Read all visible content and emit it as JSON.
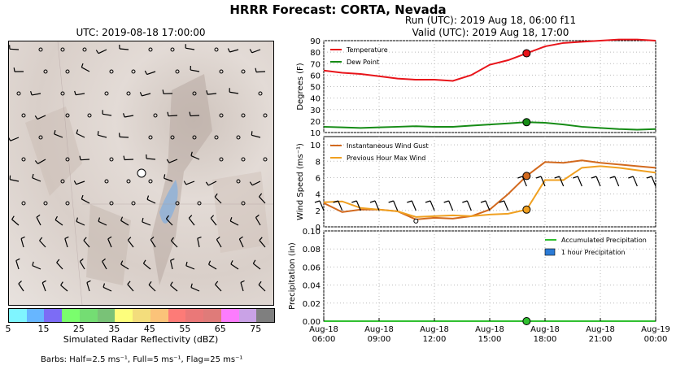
{
  "header": {
    "title": "HRRR Forecast: CORTA, Nevada",
    "map_title": "UTC: 2019-08-18 17:00:00",
    "run_line": "Run (UTC): 2019 Aug 18, 06:00 f11",
    "valid_line": "Valid (UTC): 2019 Aug 18, 17:00"
  },
  "colorbar": {
    "label": "Simulated Radar Reflectivity (dBZ)",
    "ticks": [
      "5",
      "15",
      "25",
      "35",
      "45",
      "55",
      "65",
      "75"
    ],
    "colors": [
      "#7ff5ff",
      "#67b6ff",
      "#7c6cf5",
      "#7afe6d",
      "#74dd73",
      "#79c277",
      "#fdfe7c",
      "#f3dd7c",
      "#fbc379",
      "#fd7b77",
      "#ea7878",
      "#df7b79",
      "#fc7cfd",
      "#c9a2e6",
      "#7f7f7f"
    ]
  },
  "barb_legend": "Barbs: Half=2.5 ms⁻¹, Full=5 ms⁻¹, Flag=25 ms⁻¹",
  "chart_data": [
    {
      "type": "line",
      "ylabel": "Degrees (F)",
      "ylim": [
        10,
        90
      ],
      "yticks": [
        "10",
        "20",
        "30",
        "40",
        "50",
        "60",
        "70",
        "80",
        "90"
      ],
      "x": [
        "2019-08-18 06:00",
        "2019-08-18 07:00",
        "2019-08-18 08:00",
        "2019-08-18 09:00",
        "2019-08-18 10:00",
        "2019-08-18 11:00",
        "2019-08-18 12:00",
        "2019-08-18 13:00",
        "2019-08-18 14:00",
        "2019-08-18 15:00",
        "2019-08-18 16:00",
        "2019-08-18 17:00",
        "2019-08-18 18:00",
        "2019-08-18 19:00",
        "2019-08-18 20:00",
        "2019-08-18 21:00",
        "2019-08-18 22:00",
        "2019-08-18 23:00",
        "2019-08-19 00:00"
      ],
      "legend_placement": "top-left",
      "series": [
        {
          "name": "Temperature",
          "color": "#e8141a",
          "values": [
            64,
            62,
            61,
            59,
            57,
            56,
            56,
            55,
            60,
            69,
            73,
            79,
            85,
            88,
            89,
            90,
            91,
            91,
            90
          ]
        },
        {
          "name": "Dew Point",
          "color": "#168c16",
          "values": [
            15,
            14.5,
            14,
            14.5,
            15,
            15.5,
            15,
            15,
            16,
            17,
            18,
            19,
            18.5,
            17,
            15,
            14,
            13,
            12.5,
            13
          ]
        }
      ],
      "current_marker_x": "2019-08-18 17:00",
      "grid": true
    },
    {
      "type": "line",
      "ylabel": "Wind Speed (ms⁻¹)",
      "ylim": [
        0,
        11
      ],
      "yticks": [
        "0",
        "2",
        "4",
        "6",
        "8",
        "10"
      ],
      "x": [
        "2019-08-18 06:00",
        "2019-08-18 07:00",
        "2019-08-18 08:00",
        "2019-08-18 09:00",
        "2019-08-18 10:00",
        "2019-08-18 11:00",
        "2019-08-18 12:00",
        "2019-08-18 13:00",
        "2019-08-18 14:00",
        "2019-08-18 15:00",
        "2019-08-18 16:00",
        "2019-08-18 17:00",
        "2019-08-18 18:00",
        "2019-08-18 19:00",
        "2019-08-18 20:00",
        "2019-08-18 21:00",
        "2019-08-18 22:00",
        "2019-08-18 23:00",
        "2019-08-19 00:00"
      ],
      "legend_placement": "top-left",
      "series": [
        {
          "name": "Instantaneous Wind Gust",
          "color": "#d2691e",
          "values": [
            2.9,
            1.8,
            2.1,
            2.1,
            1.9,
            0.9,
            1.1,
            1.0,
            1.3,
            2.1,
            4.0,
            6.2,
            7.9,
            7.8,
            8.1,
            7.8,
            7.6,
            7.4,
            7.2
          ]
        },
        {
          "name": "Previous Hour Max Wind",
          "color": "#f0a020",
          "values": [
            3.0,
            3.1,
            2.3,
            2.1,
            1.9,
            1.2,
            1.3,
            1.4,
            1.3,
            1.5,
            1.6,
            2.1,
            5.7,
            5.7,
            7.2,
            7.4,
            7.2,
            6.9,
            6.6
          ]
        }
      ],
      "current_marker_x": "2019-08-18 17:00",
      "grid": true
    },
    {
      "type": "bar",
      "ylabel": "Precipitation (in)",
      "ylim": [
        0,
        0.1
      ],
      "yticks": [
        "0.00",
        "0.02",
        "0.04",
        "0.06",
        "0.08",
        "0.10"
      ],
      "xticks": [
        [
          "Aug-18",
          "06:00"
        ],
        [
          "Aug-18",
          "09:00"
        ],
        [
          "Aug-18",
          "12:00"
        ],
        [
          "Aug-18",
          "15:00"
        ],
        [
          "Aug-18",
          "18:00"
        ],
        [
          "Aug-18",
          "21:00"
        ],
        [
          "Aug-19",
          "00:00"
        ]
      ],
      "legend_placement": "top-right",
      "series": [
        {
          "name": "Accumulated Precipitation",
          "color": "#30c030",
          "values": [
            0,
            0,
            0,
            0,
            0,
            0,
            0,
            0,
            0,
            0,
            0,
            0,
            0,
            0,
            0,
            0,
            0,
            0,
            0
          ]
        },
        {
          "name": "1 hour Precipitation",
          "color": "#2b7bd6",
          "values": [
            0,
            0,
            0,
            0,
            0,
            0,
            0,
            0,
            0,
            0,
            0,
            0,
            0,
            0,
            0,
            0,
            0,
            0,
            0
          ]
        }
      ],
      "current_marker_x": "2019-08-18 17:00",
      "grid": true
    }
  ]
}
